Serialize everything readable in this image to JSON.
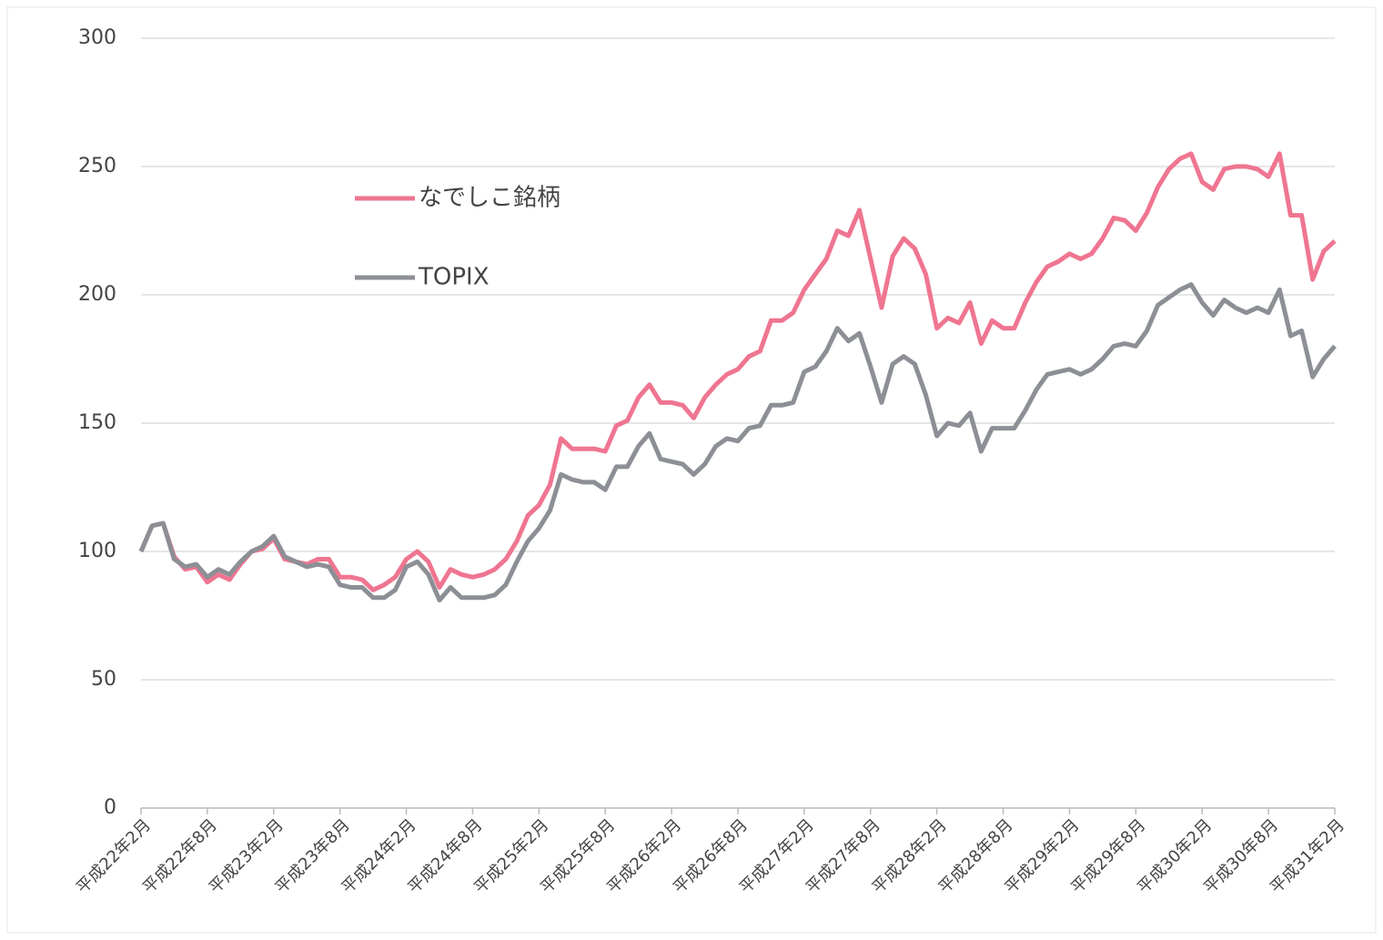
{
  "chart_data": {
    "type": "line",
    "categories": [
      "平成22年2月",
      null,
      null,
      null,
      null,
      null,
      "平成22年8月",
      null,
      null,
      null,
      null,
      null,
      "平成23年2月",
      null,
      null,
      null,
      null,
      null,
      "平成23年8月",
      null,
      null,
      null,
      null,
      null,
      "平成24年2月",
      null,
      null,
      null,
      null,
      null,
      "平成24年8月",
      null,
      null,
      null,
      null,
      null,
      "平成25年2月",
      null,
      null,
      null,
      null,
      null,
      "平成25年8月",
      null,
      null,
      null,
      null,
      null,
      "平成26年2月",
      null,
      null,
      null,
      null,
      null,
      "平成26年8月",
      null,
      null,
      null,
      null,
      null,
      "平成27年2月",
      null,
      null,
      null,
      null,
      null,
      "平成27年8月",
      null,
      null,
      null,
      null,
      null,
      "平成28年2月",
      null,
      null,
      null,
      null,
      null,
      "平成28年8月",
      null,
      null,
      null,
      null,
      null,
      "平成29年2月",
      null,
      null,
      null,
      null,
      null,
      "平成29年8月",
      null,
      null,
      null,
      null,
      null,
      "平成30年2月",
      null,
      null,
      null,
      null,
      null,
      "平成30年8月",
      null,
      null,
      null,
      null,
      null,
      "平成31年2月"
    ],
    "series": [
      {
        "name": "なでしこ銘柄",
        "color": "#ef7590",
        "values": [
          100,
          110,
          111,
          98,
          93,
          94,
          88,
          91,
          89,
          95,
          100,
          101,
          105,
          97,
          96,
          95,
          97,
          97,
          90,
          90,
          89,
          85,
          87,
          90,
          97,
          100,
          96,
          86,
          93,
          91,
          90,
          91,
          93,
          97,
          104,
          114,
          118,
          126,
          144,
          140,
          140,
          140,
          139,
          149,
          151,
          160,
          165,
          158,
          158,
          157,
          152,
          160,
          165,
          169,
          171,
          176,
          178,
          190,
          190,
          193,
          202,
          208,
          214,
          225,
          223,
          233,
          214,
          195,
          215,
          222,
          218,
          208,
          187,
          191,
          189,
          197,
          181,
          190,
          187,
          187,
          197,
          205,
          211,
          213,
          216,
          214,
          216,
          222,
          230,
          229,
          225,
          232,
          242,
          249,
          253,
          255,
          244,
          241,
          249,
          250,
          250,
          249,
          246,
          255,
          231,
          231,
          206,
          217,
          221
        ]
      },
      {
        "name": "TOPIX",
        "color": "#8c8f95",
        "values": [
          100,
          110,
          111,
          97,
          94,
          95,
          90,
          93,
          91,
          96,
          100,
          102,
          106,
          98,
          96,
          94,
          95,
          94,
          87,
          86,
          86,
          82,
          82,
          85,
          94,
          96,
          91,
          81,
          86,
          82,
          82,
          82,
          83,
          87,
          96,
          104,
          109,
          116,
          130,
          128,
          127,
          127,
          124,
          133,
          133,
          141,
          146,
          136,
          135,
          134,
          130,
          134,
          141,
          144,
          143,
          148,
          149,
          157,
          157,
          158,
          170,
          172,
          178,
          187,
          182,
          185,
          172,
          158,
          173,
          176,
          173,
          161,
          145,
          150,
          149,
          154,
          139,
          148,
          148,
          148,
          155,
          163,
          169,
          170,
          171,
          169,
          171,
          175,
          180,
          181,
          180,
          186,
          196,
          199,
          202,
          204,
          197,
          192,
          198,
          195,
          193,
          195,
          193,
          202,
          184,
          186,
          168,
          175,
          180
        ]
      }
    ],
    "ylim": [
      0,
      300
    ],
    "yticks": [
      0,
      50,
      100,
      150,
      200,
      250,
      300
    ],
    "grid": true,
    "legend": "upper-left"
  }
}
